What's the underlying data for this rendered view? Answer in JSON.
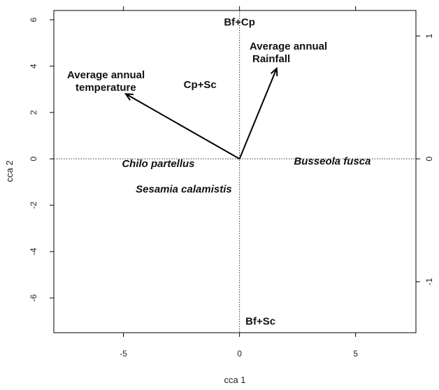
{
  "chart_data": {
    "type": "scatter",
    "title": "",
    "xlabel": "cca 1",
    "ylabel": "cca 2",
    "xlim": [
      -8,
      7.6
    ],
    "ylim": [
      -7.5,
      6.4
    ],
    "x_ticks": [
      -5,
      0,
      5
    ],
    "y_ticks": [
      -6,
      -4,
      -2,
      0,
      2,
      4,
      6
    ],
    "secondary_y_ticks": [
      {
        "label": "1",
        "at": 5.3
      },
      {
        "label": "0",
        "at": 0
      },
      {
        "label": "-1",
        "at": -5.3
      }
    ],
    "species": [
      {
        "name": "Chilo partellus",
        "x": -3.5,
        "y": -0.2
      },
      {
        "name": "Busseola fusca",
        "x": 4.0,
        "y": -0.1
      },
      {
        "name": "Sesamia calamistis",
        "x": -2.4,
        "y": -1.3
      }
    ],
    "groups": [
      {
        "name": "Bf+Cp",
        "x": 0,
        "y": 5.9
      },
      {
        "name": "Cp+Sc",
        "x": -1.7,
        "y": 3.2
      },
      {
        "name": "Bf+Sc",
        "x": 0,
        "y": -7.0
      }
    ],
    "environment_vectors": [
      {
        "name_lines": [
          "Average annual",
          "temperature"
        ],
        "x": -4.9,
        "y": 2.8
      },
      {
        "name_lines": [
          "Average annual",
          "Rainfall"
        ],
        "x": 1.6,
        "y": 3.9
      }
    ],
    "reference_lines": "dotted at x=0 and y=0",
    "grid": false
  }
}
